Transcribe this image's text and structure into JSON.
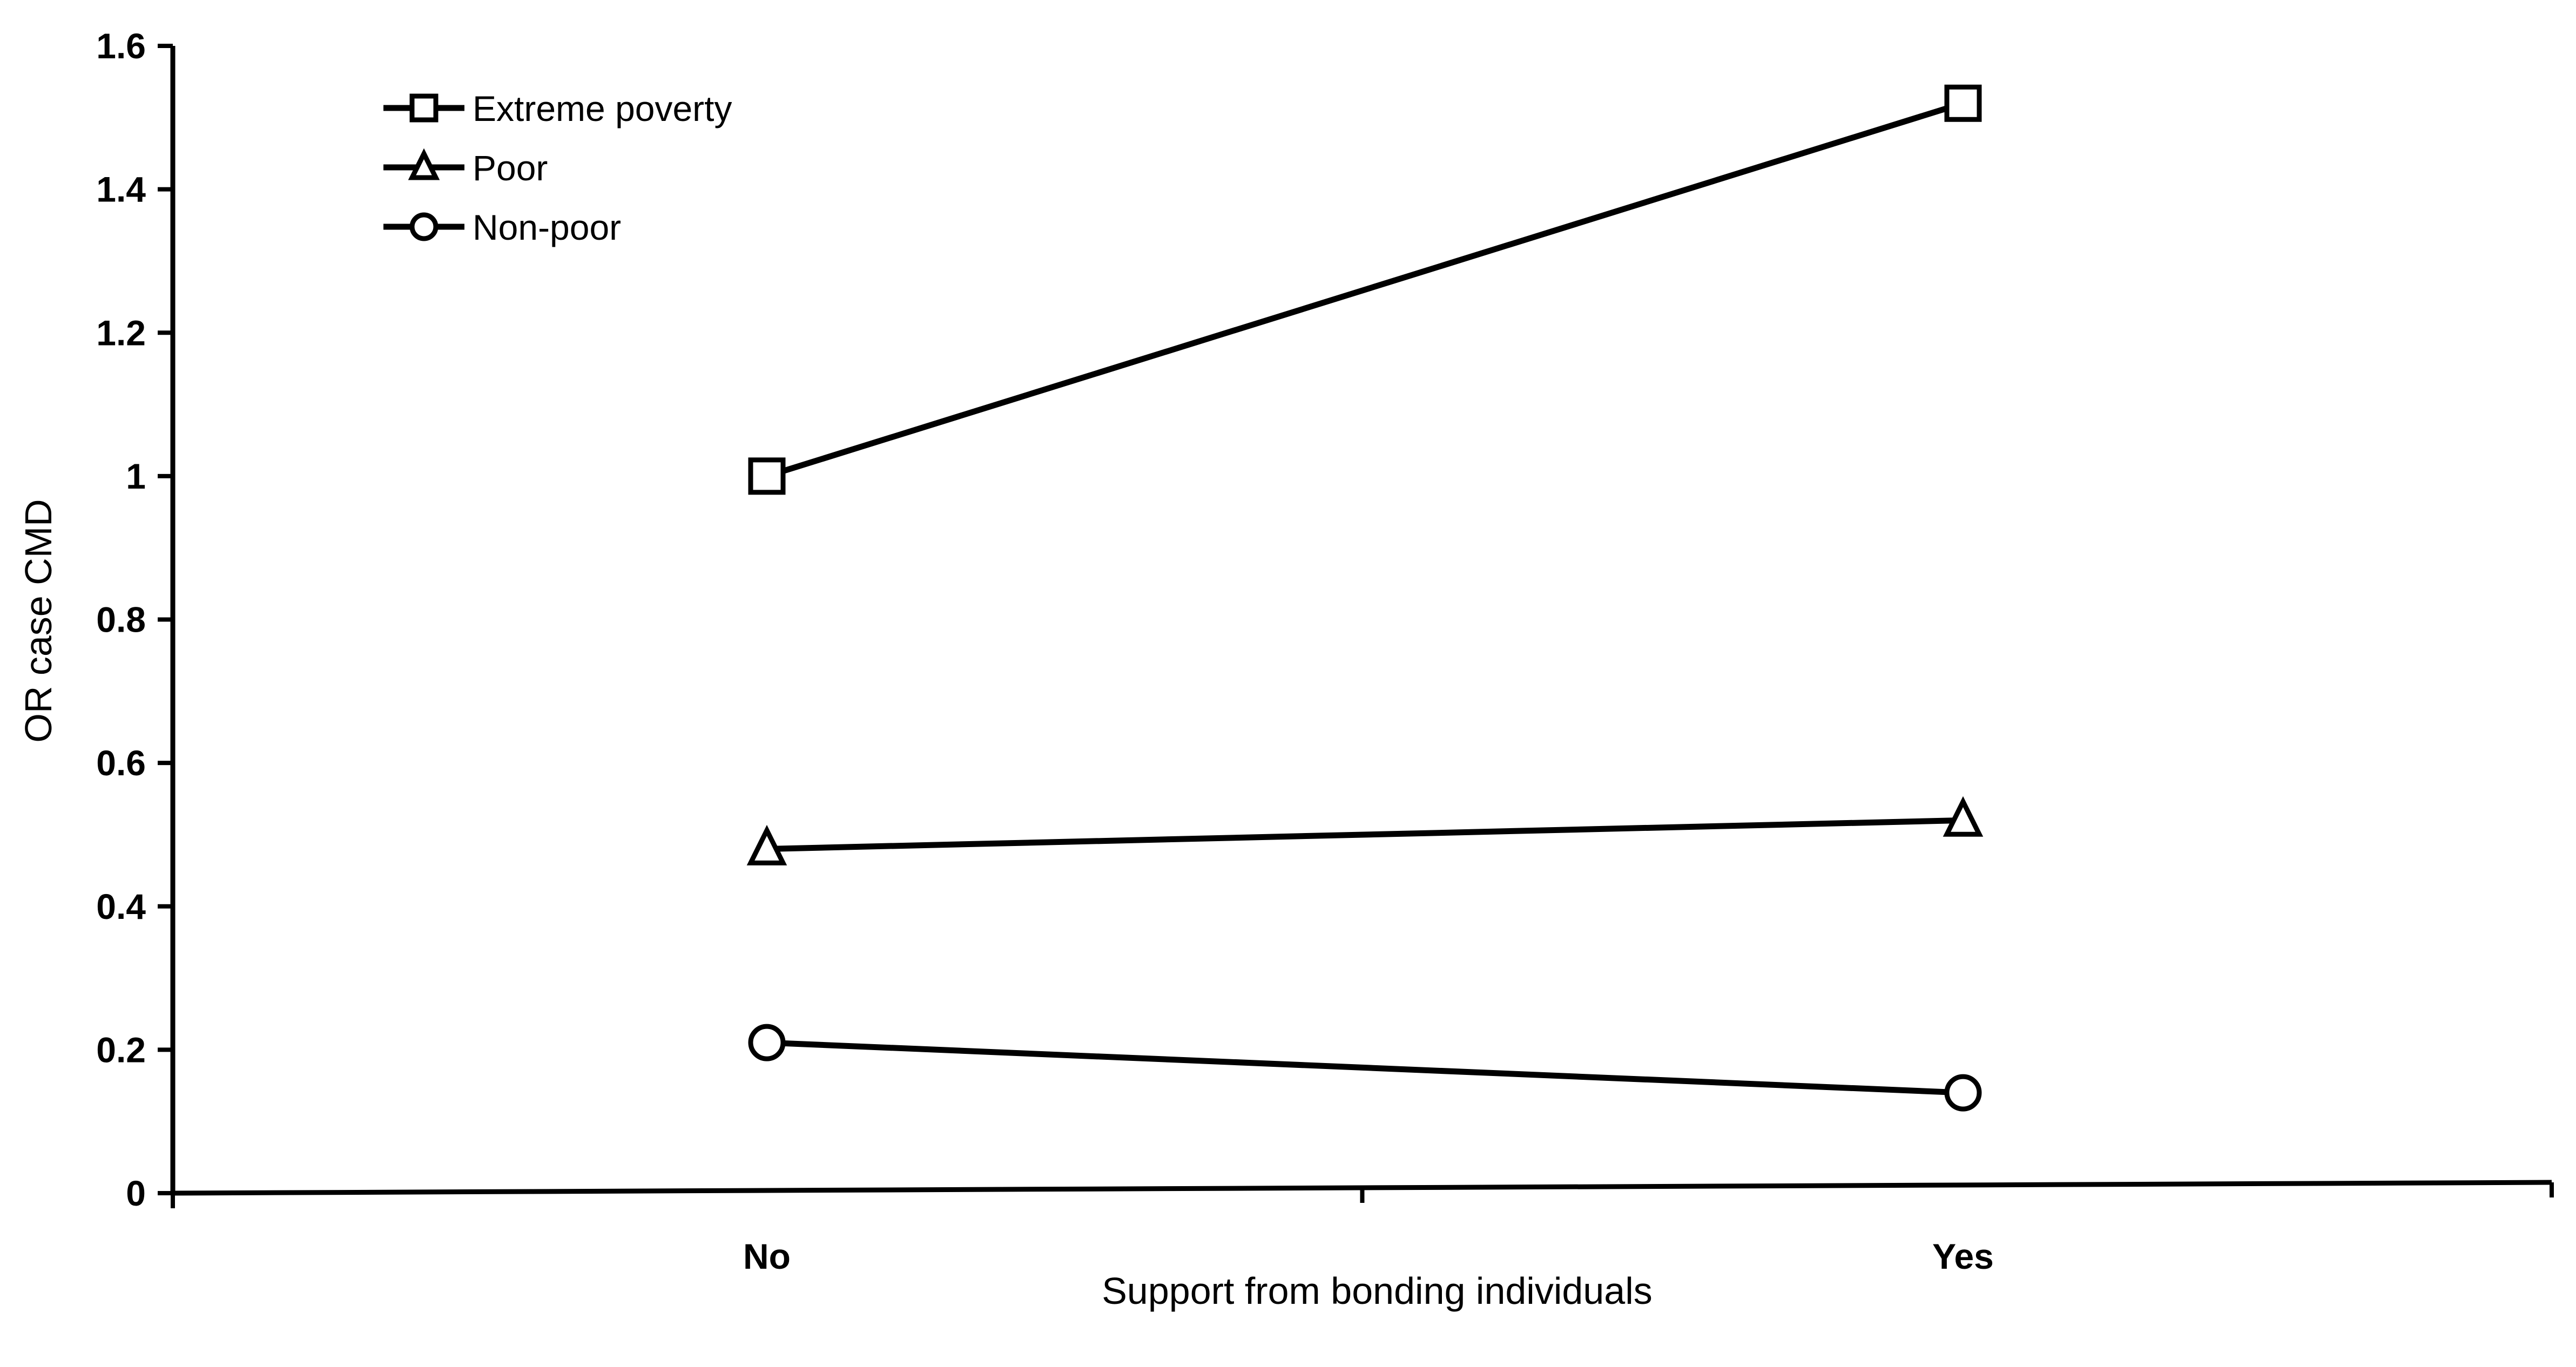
{
  "chart_data": {
    "type": "line",
    "title": "",
    "xlabel": "Support from bonding individuals",
    "ylabel": "OR case CMD",
    "categories": [
      "No",
      "Yes"
    ],
    "ylim": [
      0,
      1.6
    ],
    "yticks": [
      0,
      0.2,
      0.4,
      0.6,
      0.8,
      1,
      1.2,
      1.4,
      1.6
    ],
    "ytick_labels": [
      "0",
      "0.2",
      "0.4",
      "0.6",
      "0.8",
      "1",
      "1.2",
      "1.4",
      "1.6"
    ],
    "grid": false,
    "legend_position": "top-left",
    "series": [
      {
        "name": "Extreme poverty",
        "marker": "square",
        "values": [
          1.0,
          1.52
        ]
      },
      {
        "name": "Poor",
        "marker": "triangle",
        "values": [
          0.48,
          0.52
        ]
      },
      {
        "name": "Non-poor",
        "marker": "circle",
        "values": [
          0.21,
          0.14
        ]
      }
    ]
  }
}
